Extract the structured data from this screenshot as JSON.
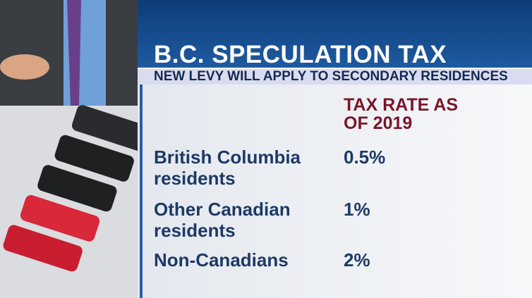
{
  "header": {
    "title": "B.C. SPECULATION TAX",
    "subtitle": "NEW LEVY WILL APPLY TO SECONDARY RESIDENCES"
  },
  "table": {
    "column_header": "TAX RATE AS OF 2019",
    "rows": [
      [
        "British Columbia residents",
        "0.5%"
      ],
      [
        "Other Canadian residents",
        "1%"
      ],
      [
        "Non-Canadians",
        "2%"
      ]
    ]
  }
}
